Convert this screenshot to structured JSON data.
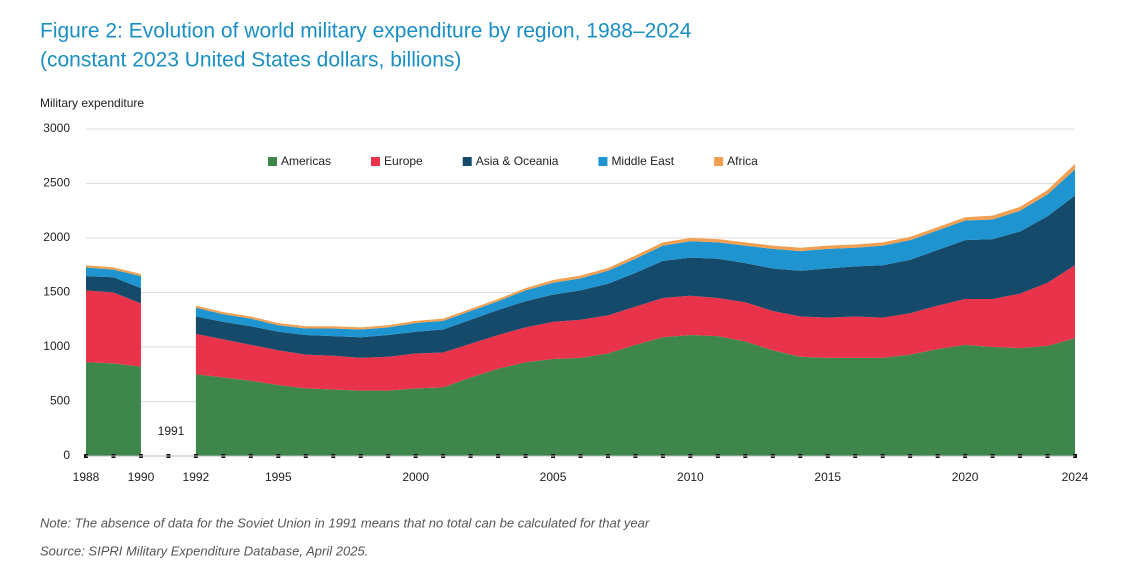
{
  "chart_data": {
    "type": "stacked_area",
    "title": "Figure 2: Evolution of world military expenditure by region, 1988–2024",
    "subtitle": "(constant 2023 United States dollars, billions)",
    "y_label": "Military expenditure",
    "annotation": "1991",
    "note": "Note: The absence of data for the Soviet Union in 1991 means that no total can be calculated for that year",
    "source": "Source: SIPRI Military Expenditure Database, April 2025.",
    "x": [
      1988,
      1989,
      1990,
      1991,
      1992,
      1993,
      1994,
      1995,
      1996,
      1997,
      1998,
      1999,
      2000,
      2001,
      2002,
      2003,
      2004,
      2005,
      2006,
      2007,
      2008,
      2009,
      2010,
      2011,
      2012,
      2013,
      2014,
      2015,
      2016,
      2017,
      2018,
      2019,
      2020,
      2021,
      2022,
      2023,
      2024
    ],
    "xlim": [
      1988,
      2024
    ],
    "xticks": [
      1988,
      1990,
      1992,
      1995,
      2000,
      2005,
      2010,
      2015,
      2020,
      2024
    ],
    "ylim": [
      0,
      3000
    ],
    "yticks": [
      0,
      500,
      1000,
      1500,
      2000,
      2500,
      3000
    ],
    "grid": true,
    "series": [
      {
        "name": "Americas",
        "color": "#3f864c",
        "values": [
          860,
          850,
          820,
          null,
          750,
          720,
          690,
          650,
          620,
          610,
          600,
          600,
          620,
          630,
          720,
          800,
          860,
          890,
          900,
          940,
          1020,
          1090,
          1110,
          1100,
          1050,
          970,
          910,
          900,
          900,
          900,
          930,
          980,
          1020,
          1000,
          990,
          1010,
          1080
        ]
      },
      {
        "name": "Europe",
        "color": "#e8334a",
        "values": [
          660,
          650,
          580,
          null,
          370,
          350,
          330,
          320,
          310,
          310,
          300,
          310,
          320,
          320,
          310,
          310,
          320,
          340,
          350,
          350,
          350,
          360,
          360,
          350,
          360,
          360,
          370,
          370,
          380,
          370,
          380,
          400,
          420,
          440,
          500,
          580,
          670
        ]
      },
      {
        "name": "Asia & Oceania",
        "color": "#154a6b",
        "values": [
          130,
          140,
          140,
          null,
          160,
          160,
          170,
          170,
          180,
          180,
          190,
          200,
          200,
          210,
          220,
          230,
          240,
          250,
          270,
          290,
          310,
          340,
          350,
          360,
          360,
          390,
          420,
          450,
          460,
          480,
          490,
          510,
          540,
          550,
          570,
          610,
          640
        ]
      },
      {
        "name": "Middle East",
        "color": "#1e95d0",
        "values": [
          80,
          70,
          110,
          null,
          80,
          70,
          70,
          60,
          60,
          70,
          70,
          70,
          80,
          80,
          80,
          80,
          100,
          110,
          110,
          120,
          130,
          140,
          150,
          150,
          160,
          180,
          180,
          180,
          170,
          180,
          180,
          180,
          180,
          180,
          190,
          200,
          240
        ]
      },
      {
        "name": "Africa",
        "color": "#f0a050",
        "values": [
          20,
          20,
          20,
          null,
          20,
          20,
          20,
          20,
          20,
          20,
          20,
          20,
          20,
          20,
          20,
          20,
          20,
          25,
          25,
          25,
          30,
          30,
          30,
          30,
          30,
          30,
          30,
          30,
          30,
          30,
          30,
          30,
          30,
          35,
          35,
          40,
          50
        ]
      }
    ]
  }
}
